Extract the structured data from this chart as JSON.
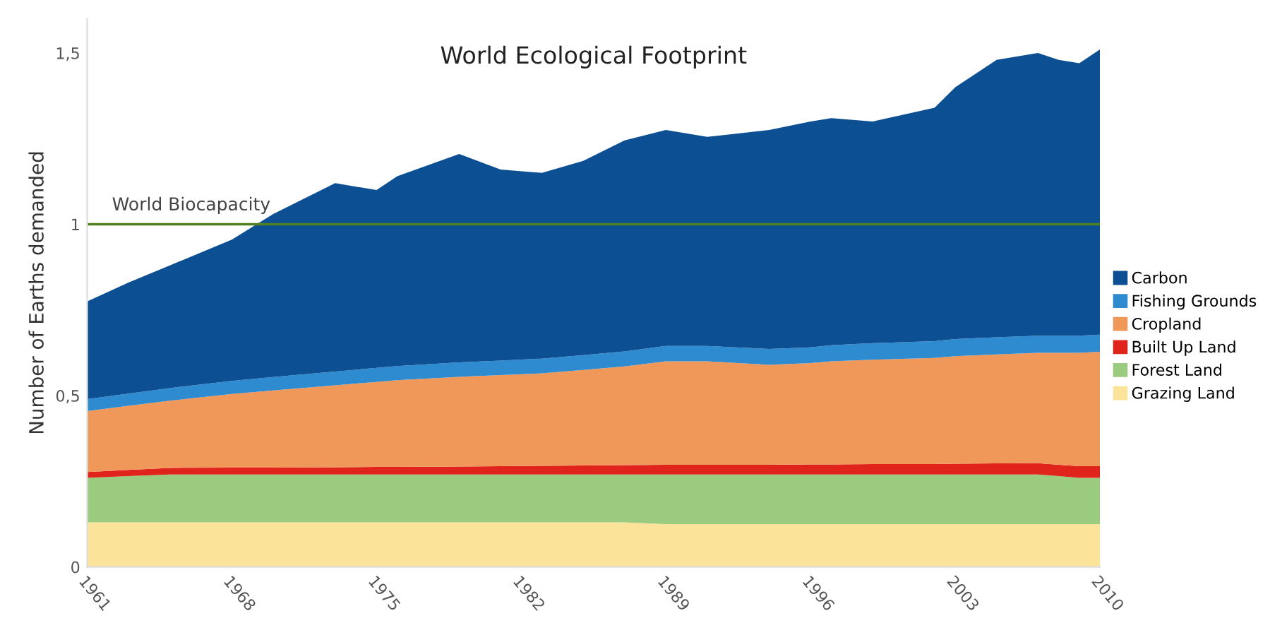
{
  "chart_data": {
    "type": "area",
    "stacked": true,
    "title": "World Ecological Footprint",
    "ylabel": "Number of Earths demanded",
    "x": [
      1961,
      1963,
      1965,
      1968,
      1970,
      1973,
      1975,
      1976,
      1979,
      1981,
      1983,
      1985,
      1987,
      1989,
      1991,
      1994,
      1996,
      1997,
      1999,
      2002,
      2003,
      2005,
      2007,
      2008,
      2009,
      2010
    ],
    "series": [
      {
        "name": "Grazing Land",
        "color": "#fbe39a",
        "values": [
          0.13,
          0.13,
          0.13,
          0.13,
          0.13,
          0.13,
          0.13,
          0.13,
          0.13,
          0.13,
          0.13,
          0.13,
          0.13,
          0.125,
          0.125,
          0.125,
          0.125,
          0.125,
          0.125,
          0.125,
          0.125,
          0.125,
          0.125,
          0.125,
          0.125,
          0.125
        ]
      },
      {
        "name": "Forest Land",
        "color": "#9acb7f",
        "values": [
          0.13,
          0.135,
          0.14,
          0.14,
          0.14,
          0.14,
          0.14,
          0.14,
          0.14,
          0.14,
          0.14,
          0.14,
          0.14,
          0.145,
          0.145,
          0.145,
          0.145,
          0.145,
          0.145,
          0.145,
          0.145,
          0.145,
          0.145,
          0.14,
          0.135,
          0.135
        ]
      },
      {
        "name": "Built Up Land",
        "color": "#e0241b",
        "values": [
          0.017,
          0.018,
          0.019,
          0.02,
          0.02,
          0.021,
          0.022,
          0.022,
          0.023,
          0.024,
          0.025,
          0.026,
          0.027,
          0.028,
          0.028,
          0.028,
          0.029,
          0.029,
          0.03,
          0.03,
          0.031,
          0.032,
          0.033,
          0.033,
          0.034,
          0.034
        ]
      },
      {
        "name": "Cropland",
        "color": "#f0975a",
        "values": [
          0.178,
          0.187,
          0.196,
          0.215,
          0.225,
          0.239,
          0.248,
          0.253,
          0.262,
          0.266,
          0.27,
          0.279,
          0.288,
          0.302,
          0.302,
          0.292,
          0.296,
          0.301,
          0.305,
          0.31,
          0.314,
          0.318,
          0.322,
          0.327,
          0.331,
          0.334
        ]
      },
      {
        "name": "Fishing Grounds",
        "color": "#2f8bd0",
        "values": [
          0.035,
          0.036,
          0.037,
          0.038,
          0.039,
          0.04,
          0.041,
          0.041,
          0.042,
          0.042,
          0.043,
          0.043,
          0.044,
          0.045,
          0.045,
          0.046,
          0.046,
          0.047,
          0.048,
          0.049,
          0.05,
          0.05,
          0.05,
          0.05,
          0.05,
          0.05
        ]
      },
      {
        "name": "Carbon",
        "color": "#0c4f92",
        "values": [
          0.285,
          0.324,
          0.358,
          0.412,
          0.476,
          0.55,
          0.519,
          0.554,
          0.608,
          0.558,
          0.542,
          0.567,
          0.616,
          0.63,
          0.61,
          0.639,
          0.659,
          0.663,
          0.647,
          0.681,
          0.735,
          0.81,
          0.825,
          0.805,
          0.795,
          0.832
        ]
      }
    ],
    "xlim": [
      1961,
      2010
    ],
    "xticks": [
      1961,
      1968,
      1975,
      1982,
      1989,
      1996,
      2003,
      2010
    ],
    "ylim": [
      0,
      1.6
    ],
    "yticks": [
      0,
      {
        "value": 0.5,
        "label": "0,5"
      },
      1,
      {
        "value": 1.5,
        "label": "1,5"
      }
    ],
    "ref_lines": [
      {
        "axis": "y",
        "value": 1,
        "label": "World Biocapacity",
        "color": "#4f7f1f"
      }
    ],
    "grid": false,
    "legend": "right"
  }
}
